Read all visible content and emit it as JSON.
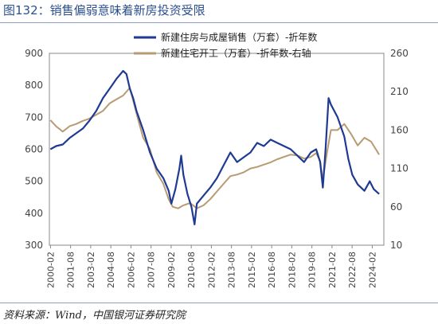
{
  "header": {
    "title": "图132：销售偏弱意味着新房投资受限"
  },
  "footer": {
    "source": "资料来源：Wind，中国银河证券研究院"
  },
  "chart_data": {
    "type": "line",
    "x_ticks": [
      "2000-02",
      "2001-08",
      "2003-02",
      "2004-08",
      "2006-02",
      "2007-08",
      "2009-02",
      "2010-08",
      "2012-02",
      "2013-08",
      "2015-02",
      "2016-08",
      "2018-02",
      "2019-08",
      "2021-02",
      "2022-08",
      "2024-02"
    ],
    "y_left": {
      "min": 300,
      "max": 900,
      "ticks": [
        300,
        400,
        500,
        600,
        700,
        800,
        900
      ]
    },
    "y_right": {
      "min": 10,
      "max": 260,
      "ticks": [
        10,
        60,
        110,
        160,
        210,
        260
      ]
    },
    "legend_placement": "top-center",
    "series": [
      {
        "name": "新建住房与成屋销售（万套）-折年数",
        "axis": "left",
        "color": "#1f3a93",
        "points": [
          [
            2000.08,
            600
          ],
          [
            2000.5,
            610
          ],
          [
            2001.0,
            615
          ],
          [
            2001.5,
            635
          ],
          [
            2002.0,
            650
          ],
          [
            2002.5,
            665
          ],
          [
            2003.0,
            690
          ],
          [
            2003.5,
            720
          ],
          [
            2004.0,
            760
          ],
          [
            2004.5,
            790
          ],
          [
            2005.0,
            820
          ],
          [
            2005.5,
            845
          ],
          [
            2005.75,
            835
          ],
          [
            2006.0,
            790
          ],
          [
            2006.25,
            760
          ],
          [
            2006.5,
            720
          ],
          [
            2007.0,
            660
          ],
          [
            2007.5,
            590
          ],
          [
            2008.0,
            540
          ],
          [
            2008.5,
            510
          ],
          [
            2008.9,
            470
          ],
          [
            2009.1,
            430
          ],
          [
            2009.4,
            475
          ],
          [
            2009.7,
            540
          ],
          [
            2009.83,
            580
          ],
          [
            2010.0,
            520
          ],
          [
            2010.3,
            460
          ],
          [
            2010.6,
            420
          ],
          [
            2010.83,
            365
          ],
          [
            2011.0,
            430
          ],
          [
            2011.5,
            455
          ],
          [
            2012.0,
            480
          ],
          [
            2012.5,
            510
          ],
          [
            2013.0,
            550
          ],
          [
            2013.5,
            590
          ],
          [
            2014.0,
            560
          ],
          [
            2014.5,
            575
          ],
          [
            2015.0,
            590
          ],
          [
            2015.5,
            620
          ],
          [
            2016.0,
            610
          ],
          [
            2016.5,
            630
          ],
          [
            2017.0,
            620
          ],
          [
            2017.5,
            610
          ],
          [
            2018.0,
            600
          ],
          [
            2018.5,
            580
          ],
          [
            2019.0,
            560
          ],
          [
            2019.5,
            590
          ],
          [
            2019.9,
            600
          ],
          [
            2020.2,
            560
          ],
          [
            2020.4,
            480
          ],
          [
            2020.6,
            600
          ],
          [
            2020.83,
            760
          ],
          [
            2021.0,
            740
          ],
          [
            2021.5,
            700
          ],
          [
            2022.0,
            640
          ],
          [
            2022.3,
            570
          ],
          [
            2022.6,
            520
          ],
          [
            2023.0,
            490
          ],
          [
            2023.5,
            470
          ],
          [
            2023.9,
            500
          ],
          [
            2024.2,
            475
          ],
          [
            2024.6,
            460
          ]
        ]
      },
      {
        "name": "新建住宅开工（万套）-折年数-右轴",
        "axis": "right",
        "color": "#b89b72",
        "points": [
          [
            2000.08,
            173
          ],
          [
            2000.5,
            165
          ],
          [
            2001.0,
            158
          ],
          [
            2001.5,
            165
          ],
          [
            2002.0,
            168
          ],
          [
            2002.5,
            172
          ],
          [
            2003.0,
            175
          ],
          [
            2003.5,
            180
          ],
          [
            2004.0,
            185
          ],
          [
            2004.5,
            195
          ],
          [
            2005.0,
            200
          ],
          [
            2005.5,
            205
          ],
          [
            2006.0,
            215
          ],
          [
            2006.3,
            195
          ],
          [
            2006.6,
            175
          ],
          [
            2007.0,
            150
          ],
          [
            2007.5,
            135
          ],
          [
            2008.0,
            105
          ],
          [
            2008.5,
            90
          ],
          [
            2008.9,
            70
          ],
          [
            2009.2,
            60
          ],
          [
            2009.6,
            58
          ],
          [
            2010.0,
            62
          ],
          [
            2010.5,
            65
          ],
          [
            2011.0,
            58
          ],
          [
            2011.5,
            62
          ],
          [
            2012.0,
            70
          ],
          [
            2012.5,
            80
          ],
          [
            2013.0,
            90
          ],
          [
            2013.5,
            100
          ],
          [
            2014.0,
            102
          ],
          [
            2014.5,
            105
          ],
          [
            2015.0,
            110
          ],
          [
            2015.5,
            112
          ],
          [
            2016.0,
            115
          ],
          [
            2016.5,
            118
          ],
          [
            2017.0,
            122
          ],
          [
            2017.5,
            125
          ],
          [
            2018.0,
            128
          ],
          [
            2018.5,
            127
          ],
          [
            2019.0,
            123
          ],
          [
            2019.5,
            125
          ],
          [
            2019.9,
            130
          ],
          [
            2020.2,
            120
          ],
          [
            2020.4,
            95
          ],
          [
            2020.7,
            130
          ],
          [
            2021.0,
            160
          ],
          [
            2021.5,
            160
          ],
          [
            2022.0,
            168
          ],
          [
            2022.5,
            155
          ],
          [
            2023.0,
            140
          ],
          [
            2023.5,
            150
          ],
          [
            2024.0,
            145
          ],
          [
            2024.6,
            128
          ]
        ]
      }
    ]
  }
}
